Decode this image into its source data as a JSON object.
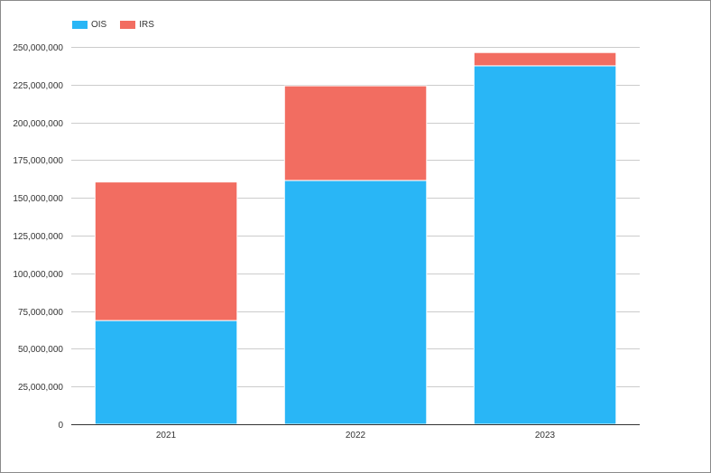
{
  "chart_data": {
    "type": "bar",
    "stacked": true,
    "categories": [
      "2021",
      "2022",
      "2023"
    ],
    "series": [
      {
        "name": "OIS",
        "color": "#29b6f6",
        "values": [
          68700000,
          161500000,
          237500000
        ]
      },
      {
        "name": "IRS",
        "color": "#f26d61",
        "values": [
          91800000,
          62700000,
          8800000
        ]
      }
    ],
    "ylim": [
      0,
      250000000
    ],
    "yticks": [
      0,
      25000000,
      50000000,
      75000000,
      100000000,
      125000000,
      150000000,
      175000000,
      200000000,
      225000000,
      250000000
    ],
    "ytick_labels": [
      "0",
      "25,000,000",
      "50,000,000",
      "75,000,000",
      "100,000,000",
      "125,000,000",
      "150,000,000",
      "175,000,000",
      "200,000,000",
      "225,000,000",
      "250,000,000"
    ],
    "grid": true,
    "legend_position": "top-left",
    "title": "",
    "xlabel": "",
    "ylabel": ""
  }
}
